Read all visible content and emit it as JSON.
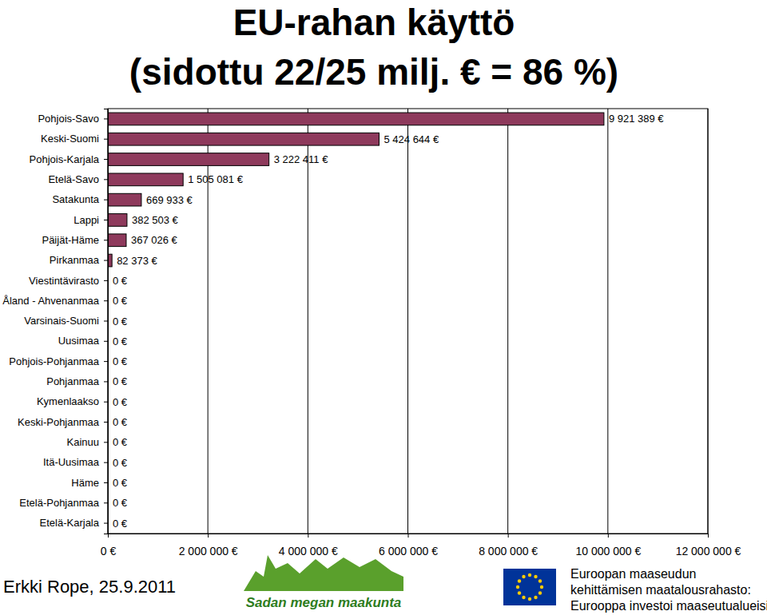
{
  "chart_data": {
    "type": "bar",
    "orientation": "horizontal",
    "title": "EU-rahan käyttö",
    "subtitle": "(sidottu 22/25 milj. € = 86 %)",
    "categories": [
      "Pohjois-Savo",
      "Keski-Suomi",
      "Pohjois-Karjala",
      "Etelä-Savo",
      "Satakunta",
      "Lappi",
      "Päijät-Häme",
      "Pirkanmaa",
      "Viestintävirasto",
      "Åland - Ahvenanmaa",
      "Varsinais-Suomi",
      "Uusimaa",
      "Pohjois-Pohjanmaa",
      "Pohjanmaa",
      "Kymenlaakso",
      "Keski-Pohjanmaa",
      "Kainuu",
      "Itä-Uusimaa",
      "Häme",
      "Etelä-Pohjanmaa",
      "Etelä-Karjala"
    ],
    "values": [
      9921389,
      5424644,
      3222411,
      1505081,
      669933,
      382503,
      367026,
      82373,
      0,
      0,
      0,
      0,
      0,
      0,
      0,
      0,
      0,
      0,
      0,
      0,
      0
    ],
    "value_labels": [
      "9 921 389 €",
      "5 424 644 €",
      "3 222 411 €",
      "1 505 081 €",
      "669 933 €",
      "382 503 €",
      "367 026 €",
      "82 373 €",
      "0 €",
      "0 €",
      "0 €",
      "0 €",
      "0 €",
      "0 €",
      "0 €",
      "0 €",
      "0 €",
      "0 €",
      "0 €",
      "0 €",
      "0 €"
    ],
    "data_labels": true,
    "color": "#8e3a5c",
    "xlim": [
      0,
      12000000
    ],
    "xticks": [
      {
        "value": 0,
        "label": "0 €"
      },
      {
        "value": 2000000,
        "label": "2 000 000 €"
      },
      {
        "value": 4000000,
        "label": "4 000 000 €"
      },
      {
        "value": 6000000,
        "label": "6 000 000 €"
      },
      {
        "value": 8000000,
        "label": "8 000 000 €"
      },
      {
        "value": 10000000,
        "label": "10 000 000 €"
      },
      {
        "value": 12000000,
        "label": "12 000 000 €"
      }
    ],
    "grid": true,
    "annotations": [
      "Erkki Rope, 25.9.2011",
      "Sadan megan maakunta",
      "Euroopan maaseudun",
      "kehittämisen maatalousrahasto:",
      "Eurooppa investoi maaseutualueisiin"
    ]
  }
}
